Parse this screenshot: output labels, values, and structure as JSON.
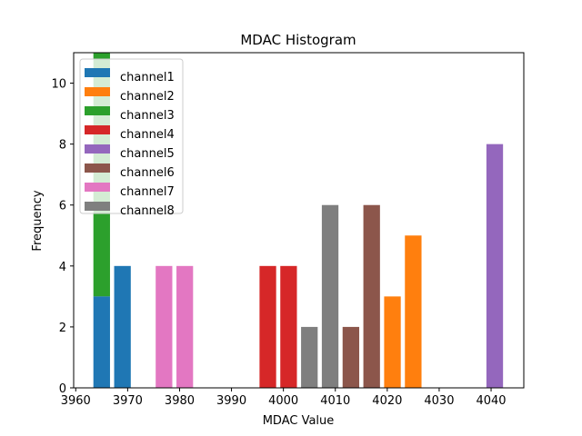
{
  "chart_data": {
    "type": "bar",
    "title": "MDAC Histogram",
    "xlabel": "MDAC Value",
    "ylabel": "Frequency",
    "xlim": [
      3959.6,
      4046.3
    ],
    "ylim": [
      0,
      11
    ],
    "xticks": [
      3960,
      3970,
      3980,
      3990,
      4000,
      4010,
      4020,
      4030,
      4040
    ],
    "yticks": [
      0,
      2,
      4,
      6,
      8,
      10
    ],
    "bar_width": 3.2,
    "grid": false,
    "legend_position": "top-left",
    "series": [
      {
        "name": "channel1",
        "color": "#1f77b4",
        "bars": [
          {
            "x": 3965,
            "value": 3
          },
          {
            "x": 3969,
            "value": 4
          }
        ]
      },
      {
        "name": "channel2",
        "color": "#ff7f0e",
        "bars": [
          {
            "x": 4021,
            "value": 3
          },
          {
            "x": 4025,
            "value": 5
          }
        ]
      },
      {
        "name": "channel3",
        "color": "#2ca02c",
        "bars": [
          {
            "x": 3965,
            "bottom": 3,
            "value": 11
          }
        ]
      },
      {
        "name": "channel4",
        "color": "#d62728",
        "bars": [
          {
            "x": 3997,
            "value": 4
          },
          {
            "x": 4001,
            "value": 4
          }
        ]
      },
      {
        "name": "channel5",
        "color": "#9467bd",
        "bars": [
          {
            "x": 4040.7,
            "value": 8
          }
        ]
      },
      {
        "name": "channel6",
        "color": "#8c564b",
        "bars": [
          {
            "x": 4013,
            "value": 2
          },
          {
            "x": 4017,
            "value": 6
          }
        ]
      },
      {
        "name": "channel7",
        "color": "#e377c2",
        "bars": [
          {
            "x": 3977,
            "value": 4
          },
          {
            "x": 3981,
            "value": 4
          }
        ]
      },
      {
        "name": "channel8",
        "color": "#7f7f7f",
        "bars": [
          {
            "x": 4005,
            "value": 2
          },
          {
            "x": 4009,
            "value": 6
          }
        ]
      }
    ]
  }
}
